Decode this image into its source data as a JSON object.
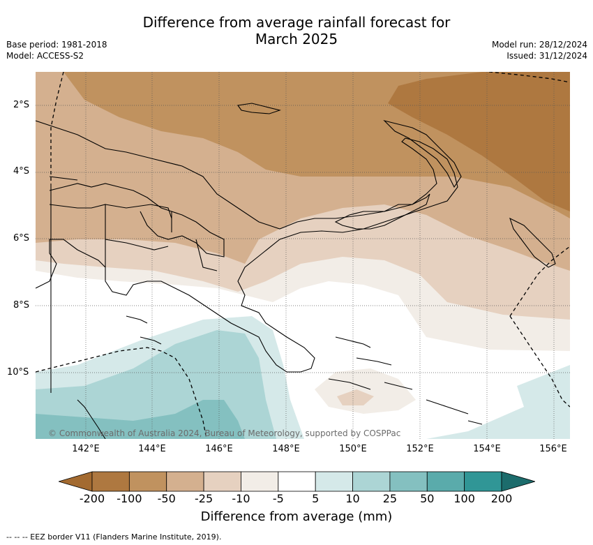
{
  "title_line1": "Difference from average rainfall forecast for",
  "title_line2": "March 2025",
  "base_period": "Base period: 1981-2018",
  "model": "Model: ACCESS-S2",
  "model_run": "Model run: 28/12/2024",
  "issued": "Issued: 31/12/2024",
  "copyright": "© Commonwealth of Australia 2024, Bureau of Meteorology, supported by COSPPac",
  "lat_labels": [
    "2°S",
    "4°S",
    "6°S",
    "8°S",
    "10°S"
  ],
  "lon_labels": [
    "142°E",
    "144°E",
    "146°E",
    "148°E",
    "150°E",
    "152°E",
    "154°E",
    "156°E"
  ],
  "colorbar": {
    "title": "Difference from average (mm)",
    "ticks": [
      "-200",
      "-100",
      "-50",
      "-25",
      "-10",
      "-5",
      "5",
      "10",
      "25",
      "50",
      "100",
      "200"
    ],
    "colors": [
      "#a36a30",
      "#ae7840",
      "#c0925f",
      "#d4b08f",
      "#e6d1c0",
      "#f2ede7",
      "#ffffff",
      "#d5e9e9",
      "#acd5d5",
      "#84c0c0",
      "#5aabab",
      "#309696",
      "#1c6c6c"
    ]
  },
  "footer": "-- -- -- EEZ border V11 (Flanders Marine Institute, 2019)."
}
